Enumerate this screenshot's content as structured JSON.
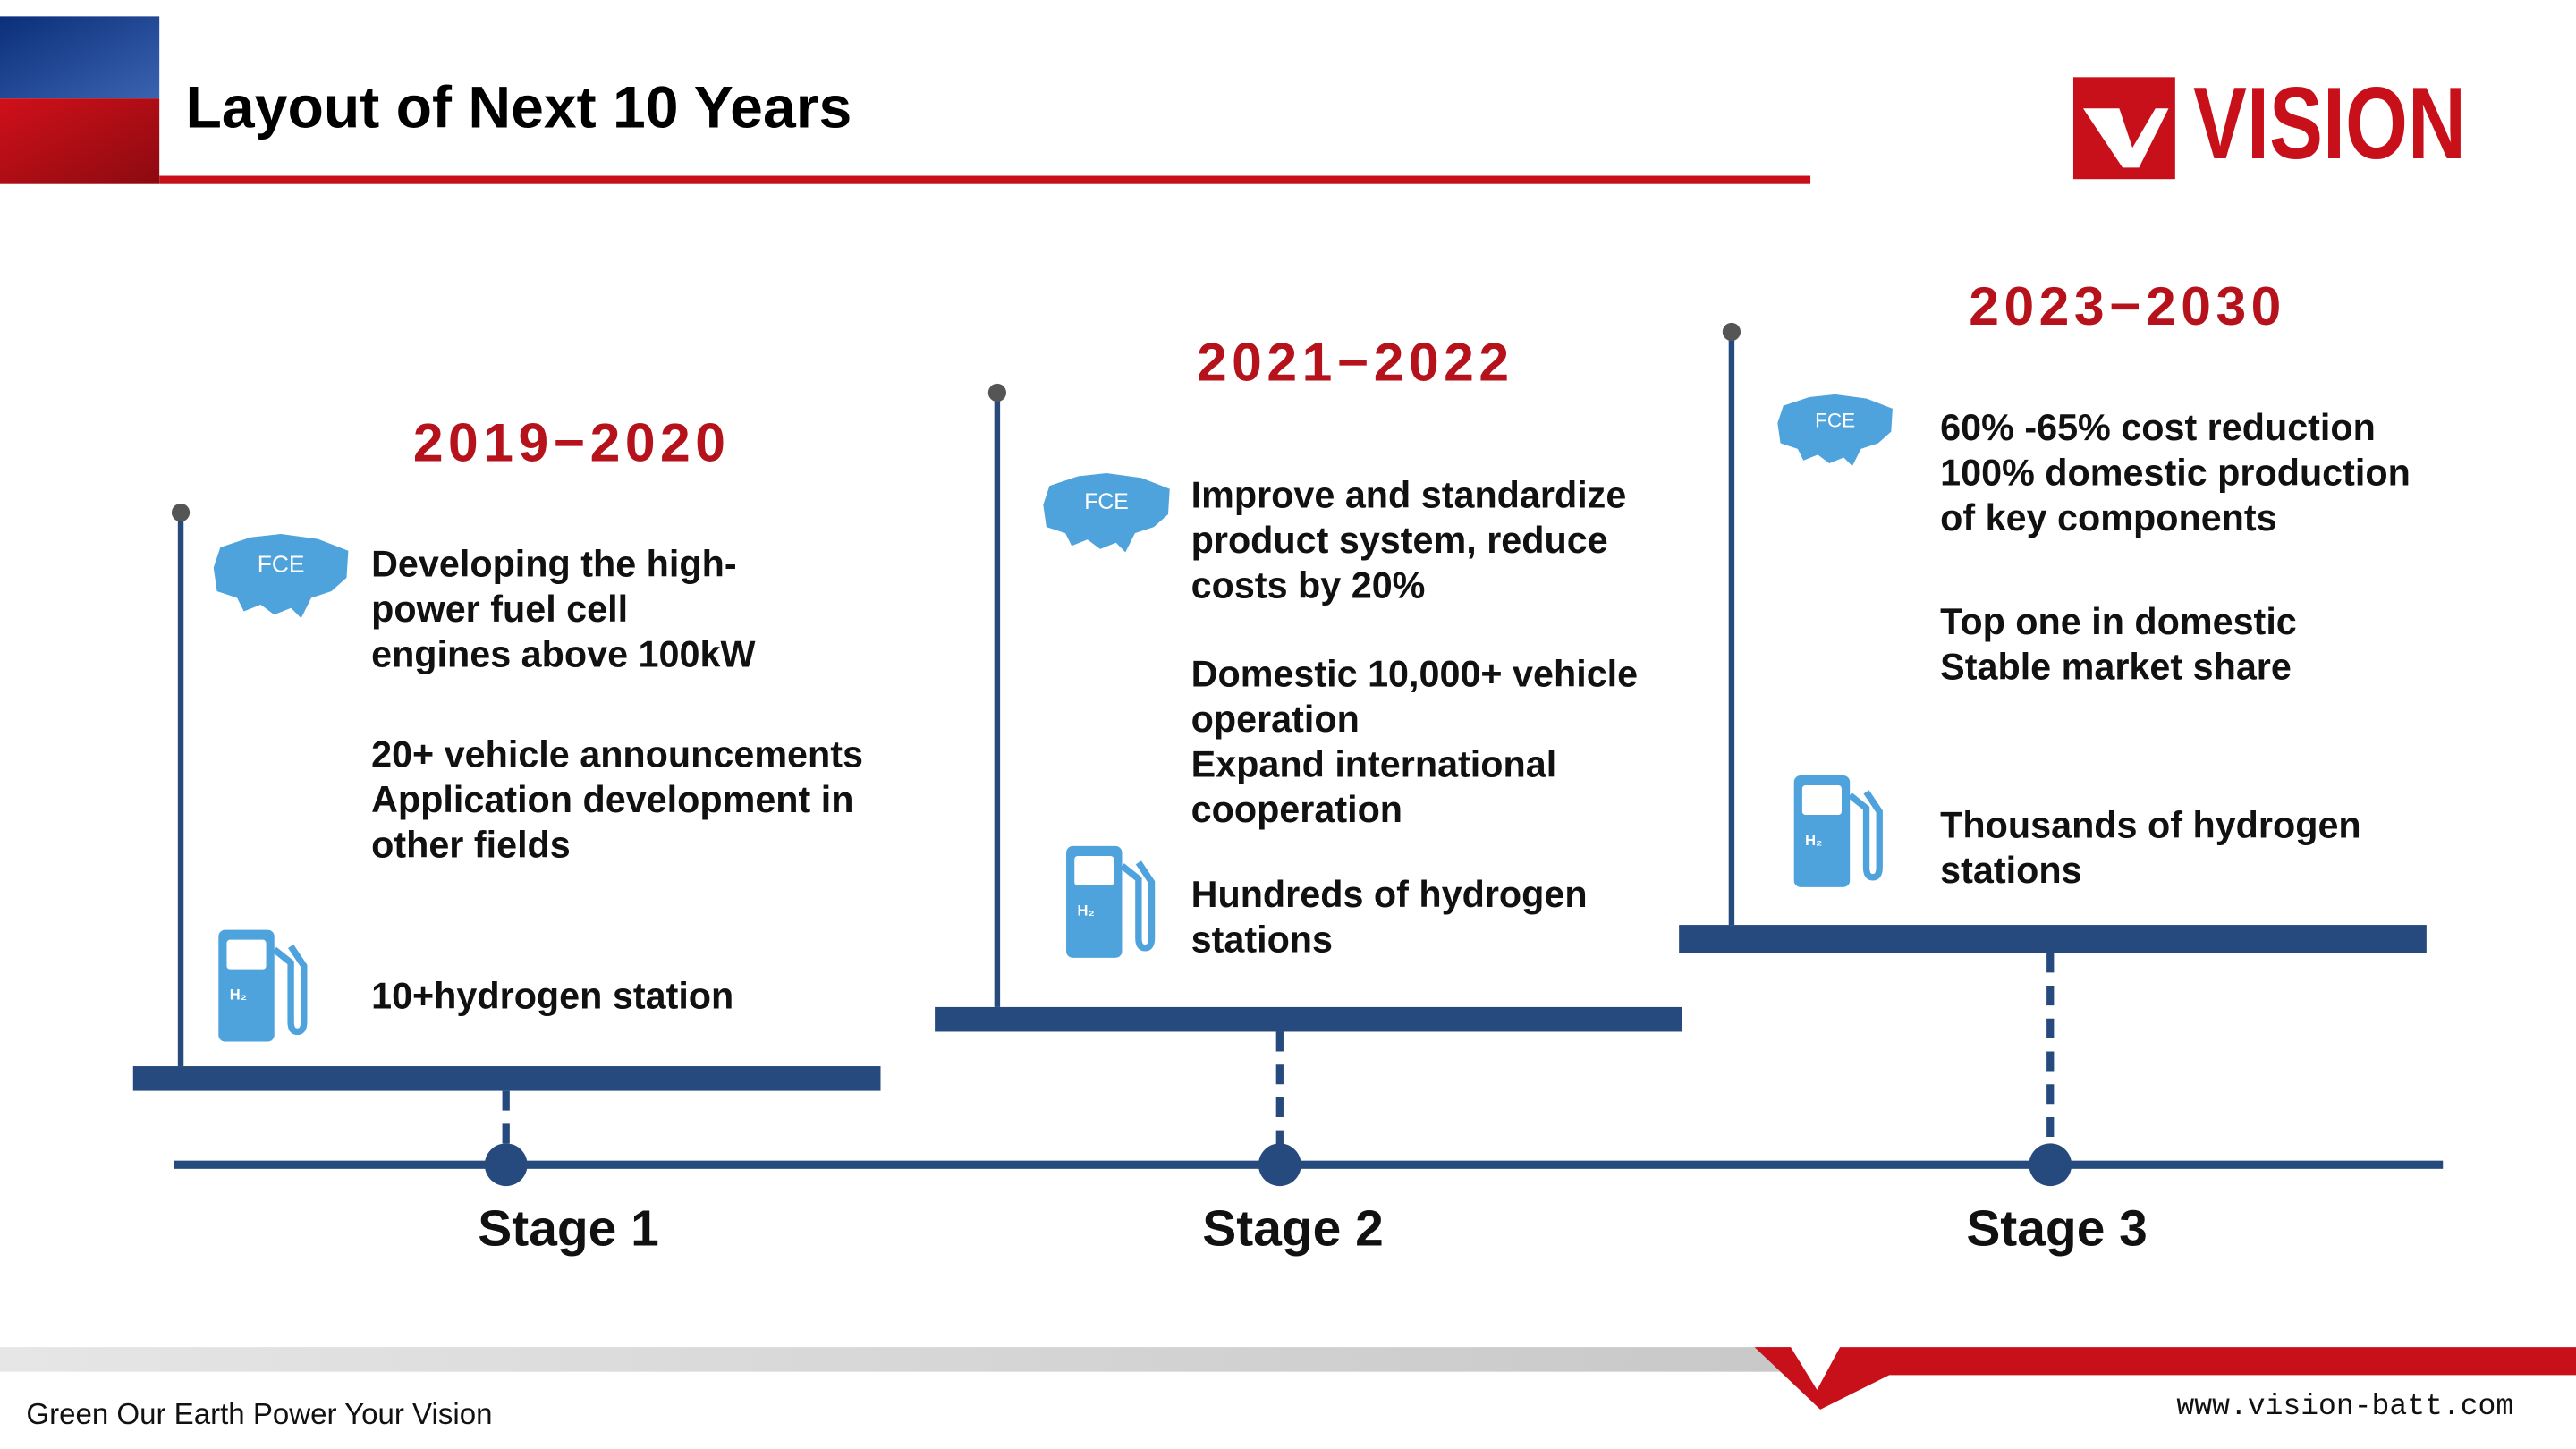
{
  "header": {
    "title": "Layout of Next 10 Years",
    "logo": "VISION"
  },
  "icon_labels": {
    "fce": "FCE",
    "h2": "H₂"
  },
  "stages": [
    {
      "period": "2019−2020",
      "label": "Stage 1",
      "paragraphs": [
        [
          "Developing the high-",
          "power fuel cell",
          "engines above 100kW"
        ],
        [
          "20+ vehicle announcements",
          "Application development in",
          "other fields"
        ],
        [
          "10+hydrogen station"
        ]
      ]
    },
    {
      "period": "2021−2022",
      "label": "Stage 2",
      "paragraphs": [
        [
          "Improve and standardize",
          "product system, reduce",
          "costs by 20%"
        ],
        [
          "Domestic 10,000+ vehicle",
          "operation",
          "Expand international",
          "cooperation"
        ],
        [
          "Hundreds of hydrogen",
          "stations"
        ]
      ]
    },
    {
      "period": "2023−2030",
      "label": "Stage 3",
      "paragraphs": [
        [
          "60% -65% cost reduction",
          "100% domestic production",
          "of key components"
        ],
        [
          "Top one in domestic",
          "Stable market share"
        ],
        [
          "Thousands of hydrogen",
          "stations"
        ]
      ]
    }
  ],
  "footer": {
    "slogan": "Green Our Earth Power Your Vision",
    "url": "www.vision-batt.com"
  }
}
